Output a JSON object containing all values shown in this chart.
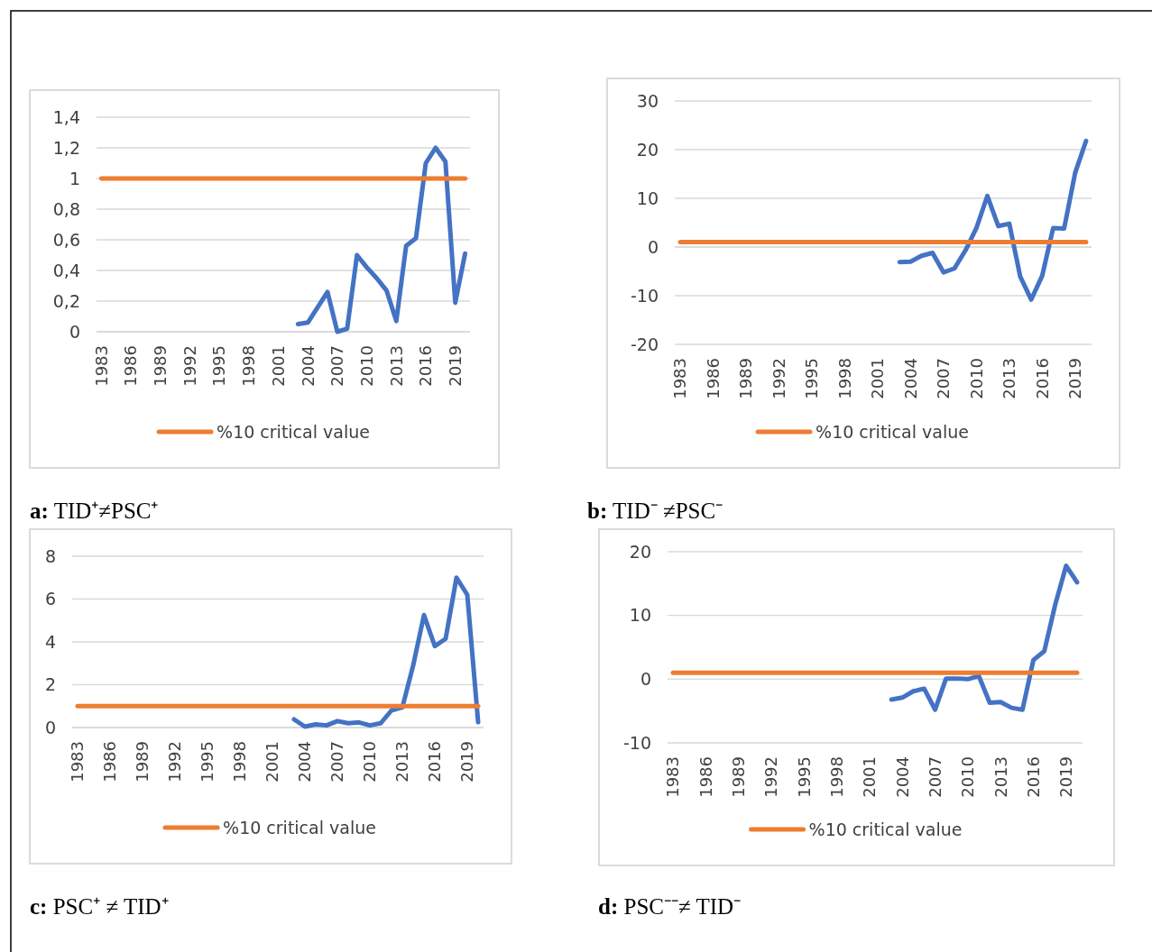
{
  "chart_data": [
    {
      "type": "line",
      "title": "a: TID⁺≠PSC⁺",
      "categories": [
        "1983",
        null,
        null,
        "1986",
        null,
        null,
        "1989",
        null,
        null,
        "1992",
        null,
        null,
        "1995",
        null,
        null,
        "1998",
        null,
        null,
        "2001",
        null,
        null,
        "2004",
        null,
        null,
        "2007",
        null,
        null,
        "2010",
        null,
        null,
        "2013",
        null,
        null,
        "2016",
        null,
        null,
        "2019",
        null
      ],
      "series": [
        {
          "color": "#4472c4",
          "values": [
            null,
            null,
            null,
            null,
            null,
            null,
            null,
            null,
            null,
            null,
            null,
            null,
            null,
            null,
            null,
            null,
            null,
            null,
            null,
            null,
            0.05,
            0.06,
            0.16,
            0.26,
            0.0,
            0.02,
            0.5,
            0.42,
            0.35,
            0.27,
            0.07,
            0.56,
            0.61,
            1.1,
            1.2,
            1.11,
            0.19,
            0.51
          ]
        },
        {
          "name": "%10 critical value",
          "color": "#ed7d31",
          "values": [
            1,
            1,
            1,
            1,
            1,
            1,
            1,
            1,
            1,
            1,
            1,
            1,
            1,
            1,
            1,
            1,
            1,
            1,
            1,
            1,
            1,
            1,
            1,
            1,
            1,
            1,
            1,
            1,
            1,
            1,
            1,
            1,
            1,
            1,
            1,
            1,
            1,
            1
          ]
        }
      ],
      "ylim": [
        0,
        1.4
      ],
      "yticks": [
        0,
        {
          "value": 0.2,
          "label": "0,2"
        },
        {
          "value": 0.4,
          "label": "0,4"
        },
        {
          "value": 0.6,
          "label": "0,6"
        },
        {
          "value": 0.8,
          "label": "0,8"
        },
        1,
        {
          "value": 1.2,
          "label": "1,2"
        },
        {
          "value": 1.4,
          "label": "1,4"
        }
      ],
      "grid": "y",
      "legend": "bottom"
    },
    {
      "type": "line",
      "title": "b: TID⁻ ≠PSC⁻",
      "categories": [
        "1983",
        null,
        null,
        "1986",
        null,
        null,
        "1989",
        null,
        null,
        "1992",
        null,
        null,
        "1995",
        null,
        null,
        "1998",
        null,
        null,
        "2001",
        null,
        null,
        "2004",
        null,
        null,
        "2007",
        null,
        null,
        "2010",
        null,
        null,
        "2013",
        null,
        null,
        "2016",
        null,
        null,
        "2019",
        null
      ],
      "series": [
        {
          "color": "#4472c4",
          "values": [
            null,
            null,
            null,
            null,
            null,
            null,
            null,
            null,
            null,
            null,
            null,
            null,
            null,
            null,
            null,
            null,
            null,
            null,
            null,
            null,
            -3.1,
            -3.0,
            -1.8,
            -1.2,
            -5.2,
            -4.4,
            -0.7,
            3.9,
            10.5,
            4.3,
            4.8,
            -6.1,
            -10.8,
            -5.9,
            3.9,
            3.8,
            15.2,
            21.8
          ]
        },
        {
          "name": "%10 critical value",
          "color": "#ed7d31",
          "values": [
            1,
            1,
            1,
            1,
            1,
            1,
            1,
            1,
            1,
            1,
            1,
            1,
            1,
            1,
            1,
            1,
            1,
            1,
            1,
            1,
            1,
            1,
            1,
            1,
            1,
            1,
            1,
            1,
            1,
            1,
            1,
            1,
            1,
            1,
            1,
            1,
            1,
            1
          ]
        }
      ],
      "ylim": [
        -20,
        30
      ],
      "yticks": [
        -20,
        -10,
        0,
        10,
        20,
        30
      ],
      "grid": "y",
      "legend": "bottom"
    },
    {
      "type": "line",
      "title": "c: PSC⁺ ≠ TID⁺",
      "categories": [
        "1983",
        null,
        null,
        "1986",
        null,
        null,
        "1989",
        null,
        null,
        "1992",
        null,
        null,
        "1995",
        null,
        null,
        "1998",
        null,
        null,
        "2001",
        null,
        null,
        "2004",
        null,
        null,
        "2007",
        null,
        null,
        "2010",
        null,
        null,
        "2013",
        null,
        null,
        "2016",
        null,
        null,
        "2019",
        null
      ],
      "series": [
        {
          "color": "#4472c4",
          "values": [
            null,
            null,
            null,
            null,
            null,
            null,
            null,
            null,
            null,
            null,
            null,
            null,
            null,
            null,
            null,
            null,
            null,
            null,
            null,
            null,
            0.38,
            0.04,
            0.15,
            0.1,
            0.3,
            0.2,
            0.24,
            0.1,
            0.2,
            0.8,
            0.94,
            2.9,
            5.25,
            3.8,
            4.15,
            7.0,
            6.2,
            0.25
          ]
        },
        {
          "name": "%10 critical value",
          "color": "#ed7d31",
          "values": [
            1,
            1,
            1,
            1,
            1,
            1,
            1,
            1,
            1,
            1,
            1,
            1,
            1,
            1,
            1,
            1,
            1,
            1,
            1,
            1,
            1,
            1,
            1,
            1,
            1,
            1,
            1,
            1,
            1,
            1,
            1,
            1,
            1,
            1,
            1,
            1,
            1,
            1
          ]
        }
      ],
      "ylim": [
        0,
        8
      ],
      "yticks": [
        0,
        2,
        4,
        6,
        8
      ],
      "grid": "y",
      "legend": "bottom"
    },
    {
      "type": "line",
      "title": "d: PSC⁻⁻≠ TID⁻",
      "categories": [
        "1983",
        null,
        null,
        "1986",
        null,
        null,
        "1989",
        null,
        null,
        "1992",
        null,
        null,
        "1995",
        null,
        null,
        "1998",
        null,
        null,
        "2001",
        null,
        null,
        "2004",
        null,
        null,
        "2007",
        null,
        null,
        "2010",
        null,
        null,
        "2013",
        null,
        null,
        "2016",
        null,
        null,
        "2019",
        null
      ],
      "series": [
        {
          "color": "#4472c4",
          "values": [
            null,
            null,
            null,
            null,
            null,
            null,
            null,
            null,
            null,
            null,
            null,
            null,
            null,
            null,
            null,
            null,
            null,
            null,
            null,
            null,
            -3.2,
            -2.9,
            -1.9,
            -1.5,
            -4.8,
            0.1,
            0.1,
            0,
            0.5,
            -3.7,
            -3.6,
            -4.5,
            -4.8,
            3.0,
            4.4,
            11.7,
            17.8,
            15.2
          ]
        },
        {
          "name": "%10 critical value",
          "color": "#ed7d31",
          "values": [
            1,
            1,
            1,
            1,
            1,
            1,
            1,
            1,
            1,
            1,
            1,
            1,
            1,
            1,
            1,
            1,
            1,
            1,
            1,
            1,
            1,
            1,
            1,
            1,
            1,
            1,
            1,
            1,
            1,
            1,
            1,
            1,
            1,
            1,
            1,
            1,
            1,
            1
          ]
        }
      ],
      "ylim": [
        -10,
        20
      ],
      "yticks": [
        -10,
        0,
        10,
        20
      ],
      "grid": "y",
      "legend": "bottom"
    }
  ]
}
